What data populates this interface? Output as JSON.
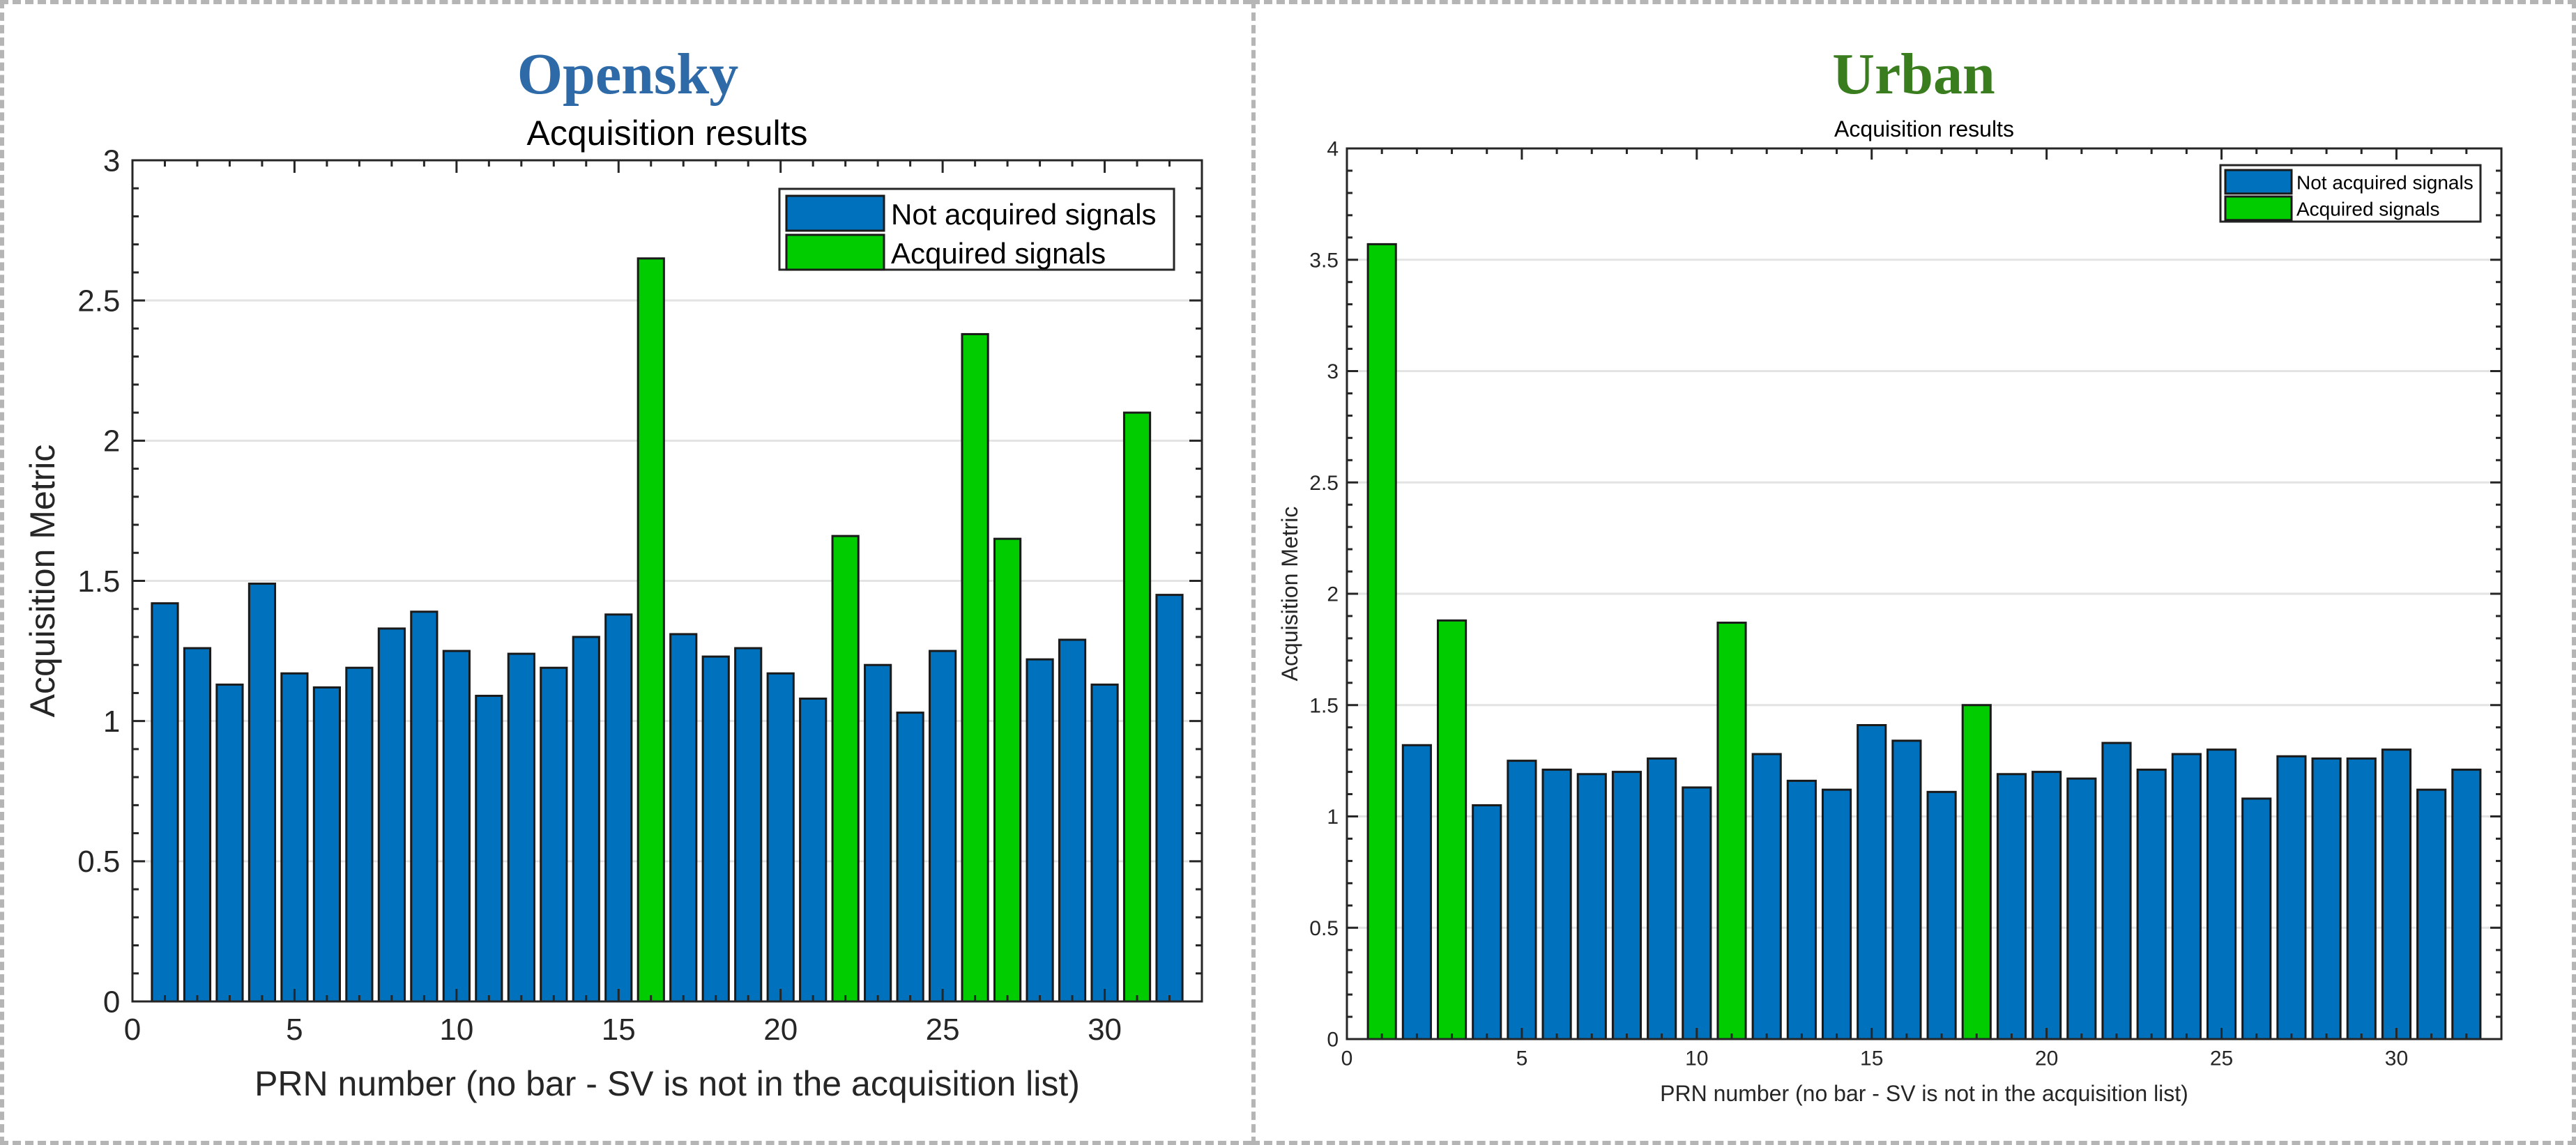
{
  "panels": {
    "left": {
      "heading": "Opensky",
      "heading_color": "#2e6aa7"
    },
    "right": {
      "heading": "Urban",
      "heading_color": "#3a7d1f"
    }
  },
  "colors": {
    "not_acquired": "#0072bd",
    "acquired": "#00cc00"
  },
  "chart_data": [
    {
      "type": "bar",
      "title": "Acquisition results",
      "xlabel": "PRN number (no bar - SV is not in the acquisition list)",
      "ylabel": "Acquisition Metric",
      "xlim": [
        0,
        33
      ],
      "ylim": [
        0,
        3
      ],
      "xticks": [
        0,
        5,
        10,
        15,
        20,
        25,
        30
      ],
      "yticks": [
        0,
        0.5,
        1,
        1.5,
        2,
        2.5,
        3
      ],
      "grid": "y",
      "legend_position": "top-right",
      "series": [
        {
          "name": "Not acquired signals",
          "color": "#0072bd"
        },
        {
          "name": "Acquired signals",
          "color": "#00cc00"
        }
      ],
      "x": [
        1,
        2,
        3,
        4,
        5,
        6,
        7,
        8,
        9,
        10,
        11,
        12,
        13,
        14,
        15,
        16,
        17,
        18,
        19,
        20,
        21,
        22,
        23,
        24,
        25,
        26,
        27,
        28,
        29,
        30,
        31,
        32
      ],
      "values": [
        1.42,
        1.26,
        1.13,
        1.49,
        1.17,
        1.12,
        1.19,
        1.33,
        1.39,
        1.25,
        1.09,
        1.24,
        1.19,
        1.3,
        1.38,
        2.65,
        1.31,
        1.23,
        1.26,
        1.17,
        1.08,
        1.66,
        1.2,
        1.03,
        1.25,
        2.38,
        1.65,
        1.22,
        1.29,
        1.13,
        2.1,
        1.45
      ],
      "acquired": [
        16,
        22,
        26,
        27,
        31
      ]
    },
    {
      "type": "bar",
      "title": "Acquisition results",
      "xlabel": "PRN number (no bar - SV is not in the acquisition list)",
      "ylabel": "Acquisition Metric",
      "xlim": [
        0,
        33
      ],
      "ylim": [
        0,
        4
      ],
      "xticks": [
        0,
        5,
        10,
        15,
        20,
        25,
        30
      ],
      "yticks": [
        0,
        0.5,
        1,
        1.5,
        2,
        2.5,
        3,
        3.5,
        4
      ],
      "grid": "y",
      "legend_position": "top-right",
      "series": [
        {
          "name": "Not acquired signals",
          "color": "#0072bd"
        },
        {
          "name": "Acquired signals",
          "color": "#00cc00"
        }
      ],
      "x": [
        1,
        2,
        3,
        4,
        5,
        6,
        7,
        8,
        9,
        10,
        11,
        12,
        13,
        14,
        15,
        16,
        17,
        18,
        19,
        20,
        21,
        22,
        23,
        24,
        25,
        26,
        27,
        28,
        29,
        30,
        31,
        32
      ],
      "values": [
        3.57,
        1.32,
        1.88,
        1.05,
        1.25,
        1.21,
        1.19,
        1.2,
        1.26,
        1.13,
        1.87,
        1.28,
        1.16,
        1.12,
        1.41,
        1.34,
        1.11,
        1.5,
        1.19,
        1.2,
        1.17,
        1.33,
        1.21,
        1.28,
        1.3,
        1.08,
        1.27,
        1.26,
        1.26,
        1.3,
        1.12,
        1.21
      ],
      "acquired": [
        1,
        3,
        11,
        18
      ]
    }
  ]
}
